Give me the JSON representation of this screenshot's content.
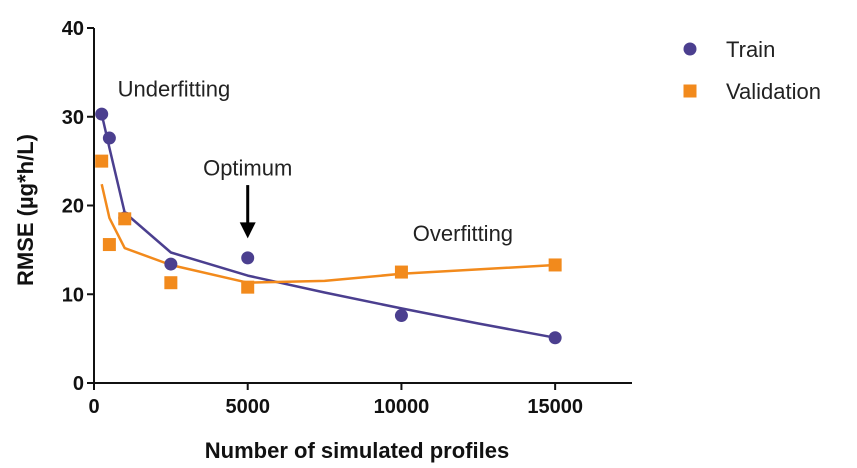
{
  "chart_data": {
    "type": "scatter",
    "xlabel": "Number of simulated profiles",
    "ylabel": "RMSE (µg*h/L)",
    "xlim": [
      0,
      17500
    ],
    "ylim": [
      0,
      40
    ],
    "xticks": [
      0,
      5000,
      10000,
      15000
    ],
    "yticks": [
      0,
      10,
      20,
      30,
      40
    ],
    "legend_position": "top-right",
    "series": [
      {
        "name": "Train",
        "marker": "circle",
        "color": "#4b3f8f",
        "points": [
          [
            250,
            30.3
          ],
          [
            500,
            27.6
          ],
          [
            1000,
            18.6
          ],
          [
            2500,
            13.4
          ],
          [
            5000,
            14.1
          ],
          [
            10000,
            7.6
          ],
          [
            15000,
            5.1
          ]
        ],
        "fit": [
          [
            250,
            30.3
          ],
          [
            500,
            26.5
          ],
          [
            1000,
            19.2
          ],
          [
            2500,
            14.7
          ],
          [
            5000,
            12.1
          ],
          [
            7500,
            10.2
          ],
          [
            10000,
            8.4
          ],
          [
            12500,
            6.7
          ],
          [
            15000,
            5.1
          ]
        ]
      },
      {
        "name": "Validation",
        "marker": "square",
        "color": "#f28a1c",
        "points": [
          [
            250,
            25.0
          ],
          [
            500,
            15.6
          ],
          [
            1000,
            18.5
          ],
          [
            2500,
            11.3
          ],
          [
            5000,
            10.8
          ],
          [
            10000,
            12.5
          ],
          [
            15000,
            13.3
          ]
        ],
        "fit": [
          [
            250,
            22.4
          ],
          [
            500,
            18.6
          ],
          [
            1000,
            15.2
          ],
          [
            2500,
            13.3
          ],
          [
            5000,
            11.3
          ],
          [
            7500,
            11.5
          ],
          [
            10000,
            12.3
          ],
          [
            12500,
            12.8
          ],
          [
            15000,
            13.3
          ]
        ]
      }
    ],
    "annotations": [
      {
        "text": "Underfitting",
        "x": 2600,
        "y": 33.2
      },
      {
        "text": "Optimum",
        "x": 5000,
        "y": 24.3,
        "arrow_from": 22.3,
        "arrow_to": 16.3
      },
      {
        "text": "Overfitting",
        "x": 12000,
        "y": 16.9
      }
    ]
  }
}
